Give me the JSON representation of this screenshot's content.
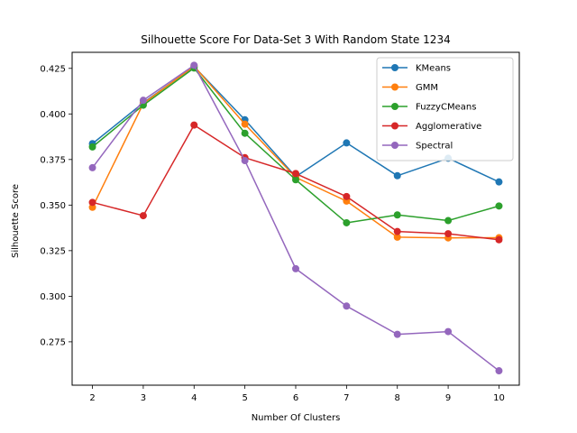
{
  "chart_data": {
    "type": "line",
    "title": "Silhouette Score For Data-Set 3 With Random State 1234",
    "xlabel": "Number Of Clusters",
    "ylabel": "Silhouette Score",
    "x": [
      2,
      3,
      4,
      5,
      6,
      7,
      8,
      9,
      10
    ],
    "xlim": [
      1.6,
      10.4
    ],
    "ylim": [
      0.2512,
      0.4338
    ],
    "yticks": [
      0.275,
      0.3,
      0.325,
      0.35,
      0.375,
      0.4,
      0.425
    ],
    "ytick_labels": [
      "0.275",
      "0.300",
      "0.325",
      "0.350",
      "0.375",
      "0.400",
      "0.425"
    ],
    "xtick_labels": [
      "2",
      "3",
      "4",
      "5",
      "6",
      "7",
      "8",
      "9",
      "10"
    ],
    "grid": false,
    "legend_position": "top-right",
    "series": [
      {
        "name": "KMeans",
        "color": "#1f77b4",
        "values": [
          0.3837,
          0.4061,
          0.426,
          0.3968,
          0.3656,
          0.3841,
          0.3661,
          0.3757,
          0.3627
        ]
      },
      {
        "name": "GMM",
        "color": "#ff7f0e",
        "values": [
          0.3488,
          0.4057,
          0.4262,
          0.3944,
          0.3652,
          0.3522,
          0.3324,
          0.332,
          0.3321
        ]
      },
      {
        "name": "FuzzyCMeans",
        "color": "#2ca02c",
        "values": [
          0.3819,
          0.4048,
          0.4252,
          0.3894,
          0.3639,
          0.3403,
          0.3446,
          0.3415,
          0.3495
        ]
      },
      {
        "name": "Agglomerative",
        "color": "#d62728",
        "values": [
          0.3515,
          0.3442,
          0.3939,
          0.376,
          0.3673,
          0.3547,
          0.3355,
          0.3343,
          0.331
        ]
      },
      {
        "name": "Spectral",
        "color": "#9467bd",
        "values": [
          0.3705,
          0.4075,
          0.4267,
          0.3744,
          0.3151,
          0.2946,
          0.2791,
          0.2806,
          0.2591
        ]
      }
    ]
  }
}
